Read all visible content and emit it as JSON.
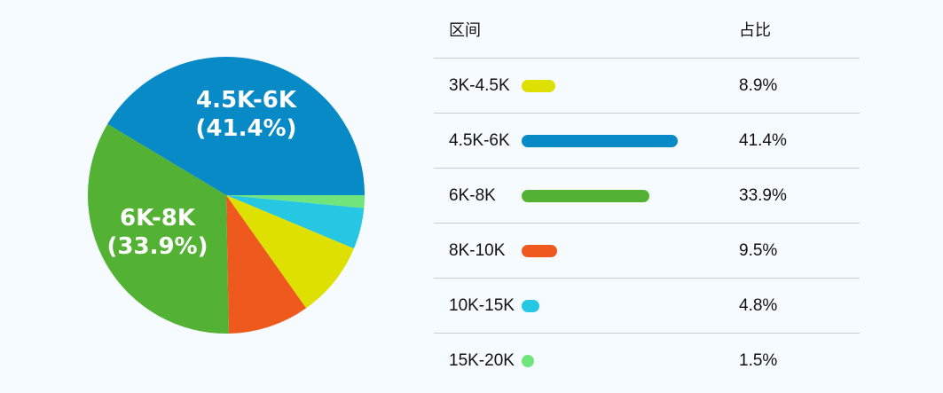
{
  "chart_data": {
    "type": "pie",
    "slices": [
      {
        "label": "3K-4.5K",
        "value": 8.9,
        "pct_label": "8.9%",
        "color": "#dde000"
      },
      {
        "label": "4.5K-6K",
        "value": 41.4,
        "pct_label": "41.4%",
        "color": "#078ac6"
      },
      {
        "label": "6K-8K",
        "value": 33.9,
        "pct_label": "33.9%",
        "color": "#53b233"
      },
      {
        "label": "8K-10K",
        "value": 9.5,
        "pct_label": "9.5%",
        "color": "#ee5a1e"
      },
      {
        "label": "10K-15K",
        "value": 4.8,
        "pct_label": "4.8%",
        "color": "#25c7e3"
      },
      {
        "label": "15K-20K",
        "value": 1.5,
        "pct_label": "1.5%",
        "color": "#6fe57b"
      }
    ],
    "slice_labels": {
      "big": [
        "4.5K-6K",
        "(41.4%)"
      ],
      "mid": [
        "6K-8K",
        "(33.9%)"
      ]
    }
  },
  "table": {
    "header_range": "区间",
    "header_pct": "占比"
  }
}
